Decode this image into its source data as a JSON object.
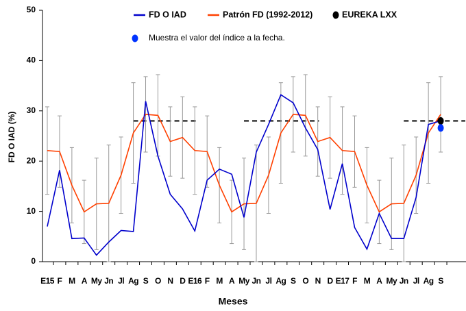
{
  "chart_data": {
    "type": "line",
    "y_label": "FD O IAD (%)",
    "x_label": "Meses",
    "categories": [
      "E15",
      "F",
      "M",
      "A",
      "My",
      "Jn",
      "Jl",
      "Ag",
      "S",
      "O",
      "N",
      "D",
      "E16",
      "F",
      "M",
      "A",
      "My",
      "Jn",
      "Jl",
      "Ag",
      "S",
      "O",
      "N",
      "D",
      "E17",
      "F",
      "M",
      "A",
      "My",
      "Jn",
      "Jl",
      "Ag",
      "S"
    ],
    "ylim": [
      0,
      50
    ],
    "yticks": [
      0,
      10,
      20,
      30,
      40,
      50
    ],
    "reference_value": 28,
    "series": [
      {
        "name": "FD O IAD",
        "color": "#0000cc",
        "values": [
          7,
          18.2,
          4.6,
          4.7,
          1.3,
          3.9,
          6.2,
          6.0,
          31.9,
          21,
          13.4,
          10.5,
          6.1,
          16.2,
          18.4,
          17.4,
          8.8,
          21.8,
          27.3,
          33.2,
          31.6,
          26.6,
          22.3,
          10.4,
          19.5,
          6.8,
          2.5,
          9.6,
          4.6,
          4.6,
          12.8,
          27.3,
          28
        ]
      },
      {
        "name": "Patrón FD (1992-2012)",
        "color": "#ff4000",
        "values": [
          22.1,
          21.9,
          15.2,
          9.9,
          11.5,
          11.6,
          17.2,
          25.6,
          29.3,
          29.1,
          23.9,
          24.7,
          22.1,
          21.9,
          15.2,
          9.9,
          11.5,
          11.6,
          17.2,
          25.6,
          29.3,
          29.1,
          23.9,
          24.7,
          22.1,
          21.9,
          15.2,
          9.9,
          11.5,
          11.6,
          17.2,
          25.6,
          29.3
        ],
        "error": [
          8.7,
          7.1,
          7.5,
          6.3,
          9.1,
          11.6,
          7.6,
          10.0,
          7.5,
          8.1,
          6.9,
          8.1,
          8.7,
          7.1,
          7.5,
          6.3,
          9.1,
          11.6,
          7.6,
          10.0,
          7.5,
          8.1,
          6.9,
          8.1,
          8.7,
          7.1,
          7.5,
          6.3,
          9.1,
          11.6,
          7.6,
          10.0,
          7.5
        ]
      },
      {
        "name": "EUREKA LXX",
        "color": "#000000",
        "marker": "dot",
        "values": [
          null,
          null,
          null,
          null,
          null,
          null,
          null,
          null,
          null,
          null,
          null,
          null,
          null,
          null,
          null,
          null,
          null,
          null,
          null,
          null,
          null,
          null,
          null,
          null,
          null,
          null,
          null,
          null,
          null,
          null,
          null,
          null,
          28
        ]
      },
      {
        "name": "Muestra el valor del índice a la fecha.",
        "color": "#0033ff",
        "marker": "dot",
        "values": [
          null,
          null,
          null,
          null,
          null,
          null,
          null,
          null,
          null,
          null,
          null,
          null,
          null,
          null,
          null,
          null,
          null,
          null,
          null,
          null,
          null,
          null,
          null,
          null,
          null,
          null,
          null,
          null,
          null,
          null,
          null,
          null,
          26.6
        ]
      }
    ]
  }
}
